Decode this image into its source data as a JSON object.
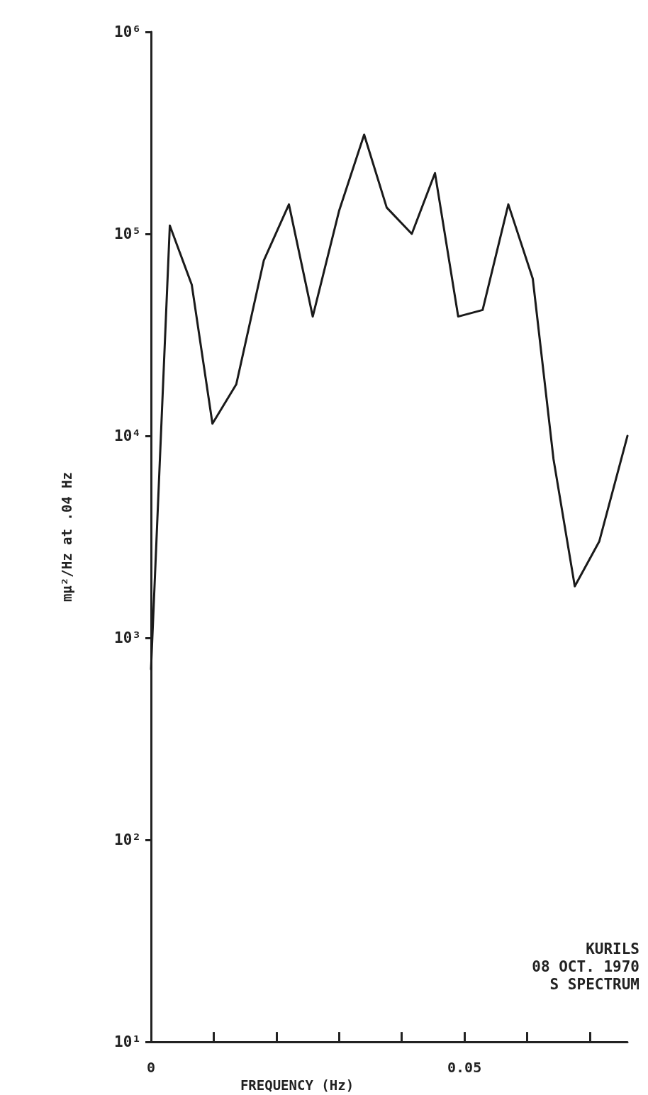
{
  "chart_data": {
    "type": "line",
    "xlabel": "FREQUENCY (Hz)",
    "ylabel": "mμ²/Hz at .04 Hz",
    "annotations": [
      "KURILS",
      "08 OCT. 1970",
      "S SPECTRUM"
    ],
    "x": [
      0,
      0.003,
      0.0065,
      0.0098,
      0.0136,
      0.018,
      0.022,
      0.0258,
      0.03,
      0.034,
      0.0376,
      0.0416,
      0.0453,
      0.049,
      0.0529,
      0.057,
      0.0609,
      0.0642,
      0.0676,
      0.0715,
      0.076
    ],
    "series": [
      {
        "color": "#1a1a1a",
        "values": [
          700,
          110000,
          56000,
          11500,
          18000,
          74000,
          140000,
          39000,
          130000,
          310000,
          135000,
          100000,
          200000,
          39000,
          42000,
          140000,
          60000,
          7700,
          1800,
          3000,
          10000
        ]
      }
    ],
    "log": "y",
    "grid": false,
    "marker": "none",
    "line_style": "solid",
    "xlim": [
      0,
      0.076
    ],
    "xticks": [
      0,
      {
        "value": 0.01,
        "label": null
      },
      {
        "value": 0.02,
        "label": null
      },
      {
        "value": 0.03,
        "label": null
      },
      {
        "value": 0.04,
        "label": null
      },
      0.05,
      {
        "value": 0.06,
        "label": null
      },
      {
        "value": 0.07,
        "label": null
      }
    ],
    "ylim": [
      10,
      1000000
    ],
    "yticks": [
      {
        "value": 10,
        "label": "10¹"
      },
      {
        "value": 100,
        "label": "10²"
      },
      {
        "value": 1000,
        "label": "10³"
      },
      {
        "value": 10000,
        "label": "10⁴"
      },
      {
        "value": 100000,
        "label": "10⁵"
      },
      {
        "value": 1000000,
        "label": "10⁶"
      }
    ]
  }
}
